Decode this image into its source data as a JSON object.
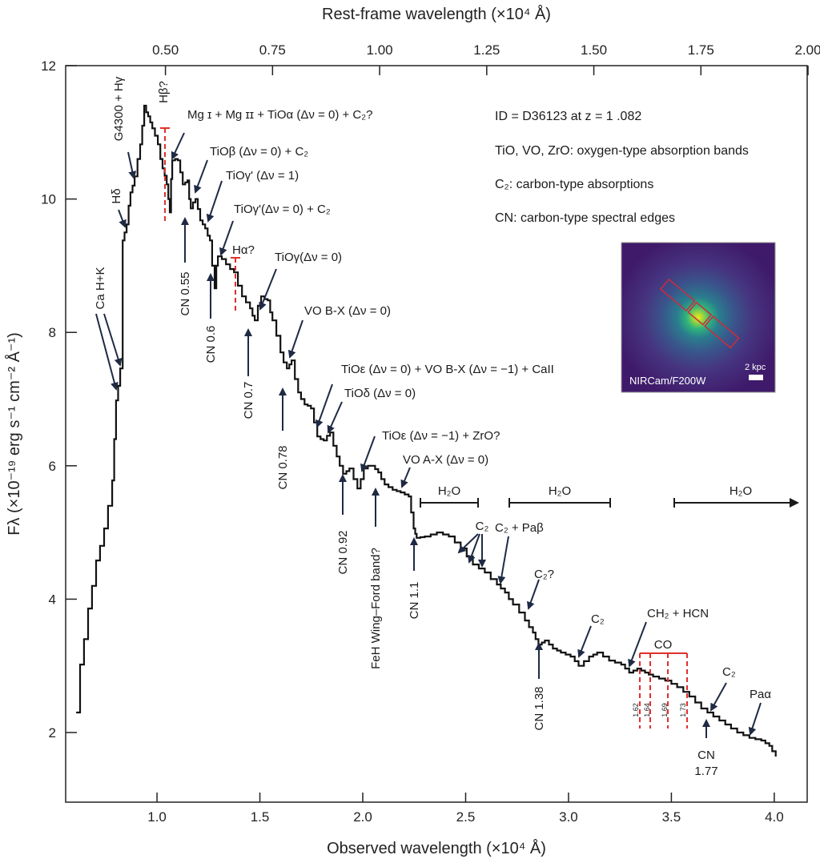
{
  "chart_data": {
    "type": "line",
    "step": true,
    "title": "",
    "xlabel": "Observed wavelength (×10⁴ Å)",
    "x2label": "Rest-frame wavelength (×10⁴ Å)",
    "ylabel": "Fλ (×10⁻¹⁹ erg s⁻¹ cm⁻² Å⁻¹)",
    "redshift": 1.082,
    "xlim": [
      0.556,
      4.16
    ],
    "ylim": [
      1,
      12
    ],
    "xticks": [
      "1.0",
      "1.5",
      "2.0",
      "2.5",
      "3.0",
      "3.5",
      "4.0"
    ],
    "x2ticks": [
      "0.50",
      "0.75",
      "1.00",
      "1.25",
      "1.50",
      "1.75",
      "2.00"
    ],
    "yticks": [
      "2",
      "4",
      "6",
      "8",
      "10",
      "12"
    ],
    "grid": false,
    "line_color": "#111111",
    "annotation_color": "#1f2a44",
    "marker_color": "#e0302a",
    "series": [
      {
        "x": [
          0.607,
          0.626,
          0.645,
          0.665,
          0.684,
          0.704,
          0.723,
          0.743,
          0.762,
          0.782,
          0.792,
          0.801,
          0.811,
          0.821,
          0.833,
          0.842,
          0.852,
          0.862,
          0.871,
          0.881,
          0.891,
          0.905,
          0.918,
          0.928,
          0.938,
          0.947,
          0.957,
          0.967,
          0.977,
          0.99,
          1.004,
          1.016,
          1.027,
          1.037,
          1.047,
          1.055,
          1.062,
          1.068,
          1.074,
          1.088,
          1.101,
          1.113,
          1.125,
          1.137,
          1.148,
          1.156,
          1.164,
          1.175,
          1.187,
          1.198,
          1.21,
          1.222,
          1.234,
          1.246,
          1.257,
          1.268,
          1.28,
          1.288,
          1.296,
          1.315,
          1.335,
          1.355,
          1.374,
          1.393,
          1.413,
          1.432,
          1.452,
          1.464,
          1.475,
          1.49,
          1.506,
          1.522,
          1.538,
          1.55,
          1.561,
          1.58,
          1.6,
          1.615,
          1.631,
          1.643,
          1.654,
          1.67,
          1.686,
          1.7,
          1.717,
          1.732,
          1.748,
          1.763,
          1.779,
          1.795,
          1.81,
          1.826,
          1.841,
          1.857,
          1.873,
          1.888,
          1.904,
          1.92,
          1.935,
          1.955,
          1.974,
          1.99,
          2.005,
          2.025,
          2.044,
          2.06,
          2.075,
          2.09,
          2.106,
          2.125,
          2.145,
          2.165,
          2.184,
          2.204,
          2.223,
          2.235,
          2.247,
          2.255,
          2.262,
          2.28,
          2.301,
          2.33,
          2.36,
          2.39,
          2.418,
          2.447,
          2.476,
          2.505,
          2.535,
          2.564,
          2.593,
          2.622,
          2.652,
          2.671,
          2.691,
          2.71,
          2.73,
          2.76,
          2.788,
          2.808,
          2.827,
          2.84,
          2.854,
          2.87,
          2.885,
          2.905,
          2.924,
          2.944,
          2.963,
          2.986,
          3.01,
          3.03,
          3.049,
          3.075,
          3.1,
          3.12,
          3.139,
          3.168,
          3.197,
          3.226,
          3.256,
          3.275,
          3.295,
          3.315,
          3.334,
          3.353,
          3.372,
          3.39,
          3.411,
          3.44,
          3.47,
          3.5,
          3.528,
          3.558,
          3.587,
          3.616,
          3.645,
          3.675,
          3.704,
          3.733,
          3.762,
          3.79,
          3.82,
          3.85,
          3.879,
          3.908,
          3.937,
          3.957,
          3.976,
          3.99,
          4.007
        ],
        "y": [
          2.3,
          3.02,
          3.4,
          3.86,
          4.2,
          4.58,
          4.8,
          5.06,
          5.4,
          5.78,
          6.4,
          6.98,
          7.2,
          7.46,
          9.38,
          9.5,
          9.62,
          9.9,
          10.1,
          10.2,
          10.34,
          10.6,
          10.82,
          11.1,
          11.4,
          11.3,
          11.24,
          11.15,
          11.06,
          10.95,
          10.82,
          10.6,
          10.46,
          10.35,
          10.22,
          10.0,
          9.8,
          10.3,
          10.58,
          10.6,
          10.58,
          10.4,
          10.22,
          10.25,
          10.28,
          10.0,
          9.86,
          9.95,
          10.0,
          9.85,
          9.68,
          9.62,
          9.56,
          9.45,
          9.38,
          9.0,
          8.66,
          9.0,
          9.14,
          9.1,
          9.02,
          8.95,
          8.9,
          8.7,
          8.54,
          8.45,
          8.36,
          8.25,
          8.18,
          8.4,
          8.54,
          8.5,
          8.48,
          8.3,
          8.18,
          7.95,
          7.7,
          7.55,
          7.46,
          7.52,
          7.58,
          7.3,
          7.1,
          7.0,
          6.92,
          6.9,
          6.86,
          6.65,
          6.44,
          6.4,
          6.38,
          6.45,
          6.5,
          6.3,
          6.14,
          6.0,
          5.88,
          5.92,
          5.96,
          5.8,
          5.66,
          5.8,
          5.96,
          6.0,
          6.0,
          5.95,
          5.9,
          5.8,
          5.72,
          5.68,
          5.64,
          5.62,
          5.6,
          5.57,
          5.54,
          5.3,
          5.06,
          4.98,
          4.92,
          4.93,
          4.94,
          4.97,
          5.0,
          4.97,
          4.94,
          4.85,
          4.76,
          4.64,
          4.52,
          4.46,
          4.4,
          4.3,
          4.22,
          4.16,
          4.1,
          4.0,
          3.92,
          3.8,
          3.68,
          3.58,
          3.5,
          3.4,
          3.32,
          3.35,
          3.38,
          3.32,
          3.26,
          3.23,
          3.2,
          3.17,
          3.14,
          3.07,
          3.0,
          3.07,
          3.14,
          3.17,
          3.2,
          3.14,
          3.08,
          3.05,
          3.02,
          2.96,
          2.9,
          2.93,
          2.96,
          2.93,
          2.9,
          2.87,
          2.84,
          2.81,
          2.78,
          2.73,
          2.68,
          2.61,
          2.54,
          2.45,
          2.36,
          2.3,
          2.24,
          2.18,
          2.12,
          2.06,
          2.0,
          1.96,
          1.92,
          1.9,
          1.88,
          1.84,
          1.8,
          1.72,
          1.64
        ]
      }
    ],
    "annotations": {
      "ca_hk": "Ca H+K",
      "h_delta": "Hδ",
      "g4300": "G4300 + Hγ",
      "h_beta": "Hβ?",
      "mg": "Mg ɪ + Mg ɪɪ + TiOα (Δν = 0) + C₂?",
      "tio_beta": "TiOβ (Δν = 0) + C₂",
      "tio_gp1": "TiOγ' (Δν = 1)",
      "tio_gp0": "TiOγ'(Δν = 0) + C₂",
      "h_alpha": "Hα?",
      "tio_g0": "TiOγ(Δν = 0)",
      "vo_bx": "VO B-X (Δν = 0)",
      "tio_eps0": "TiOε (Δν = 0) + VO B-X (Δν = −1) + CaII",
      "tio_delta": "TiOδ  (Δν = 0)",
      "tio_eps1": "TiOε (Δν = −1) + ZrO?",
      "vo_ax": "VO A-X (Δν = 0)",
      "cn055": "CN 0.55",
      "cn06": "CN 0.6",
      "cn07": "CN 0.7",
      "cn078": "CN 0.78",
      "cn092": "CN 0.92",
      "feh": "FeH Wing–Ford band?",
      "cn11": "CN 1.1",
      "h2o_1": "H₂O",
      "h2o_2": "H₂O",
      "h2o_3": "H₂O",
      "c2_group": "C₂",
      "c2_pab": "C₂ + Paβ",
      "c2_q": "C₂?",
      "cn138": "CN 1.38",
      "c2_mid": "C₂",
      "ch2_hcn": "CH₂ + HCN",
      "co": "CO",
      "co_162": "1.62",
      "co_164": "1.64",
      "co_169": "1.69",
      "co_173": "1.73",
      "c2_right": "C₂",
      "cn177_a": "CN",
      "cn177_b": "1.77",
      "pa_alpha": "Paα"
    },
    "legend_text": [
      "ID = D36123 at z = 1 .082",
      "TiO, VO, ZrO: oxygen-type absorption bands",
      "C₂: carbon-type absorptions",
      "CN: carbon-type spectral edges"
    ],
    "inset": {
      "label": "NIRCam/F200W",
      "scale_label": "2 kpc"
    }
  }
}
